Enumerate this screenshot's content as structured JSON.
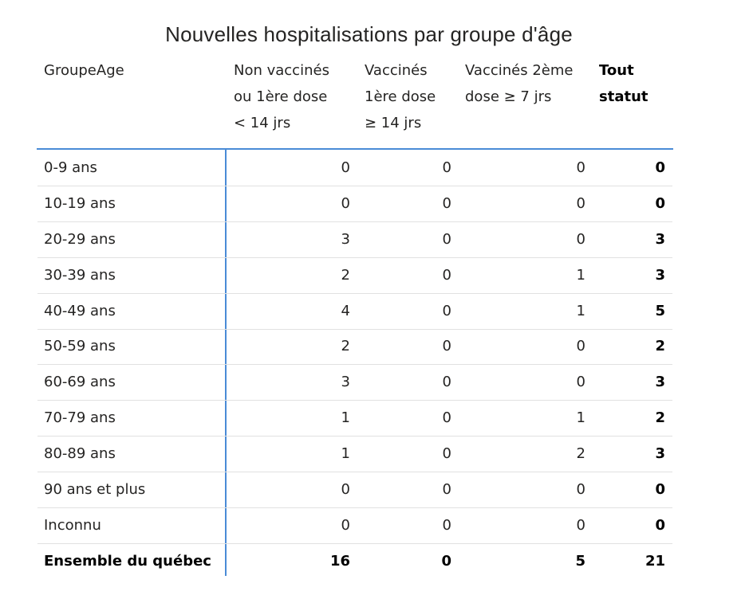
{
  "title": "Nouvelles hospitalisations par groupe d'âge",
  "table": {
    "headers": [
      [
        "GroupeAge"
      ],
      [
        "Non vaccinés",
        "ou 1ère dose",
        "< 14 jrs"
      ],
      [
        "Vaccinés",
        "1ère dose",
        "≥ 14 jrs"
      ],
      [
        "Vaccinés 2ème",
        "dose ≥ 7 jrs"
      ],
      [
        "Tout",
        "statut"
      ]
    ],
    "rows": [
      [
        "0-9 ans",
        0,
        0,
        0,
        0
      ],
      [
        "10-19 ans",
        0,
        0,
        0,
        0
      ],
      [
        "20-29 ans",
        3,
        0,
        0,
        3
      ],
      [
        "30-39 ans",
        2,
        0,
        1,
        3
      ],
      [
        "40-49 ans",
        4,
        0,
        1,
        5
      ],
      [
        "50-59 ans",
        2,
        0,
        0,
        2
      ],
      [
        "60-69 ans",
        3,
        0,
        0,
        3
      ],
      [
        "70-79 ans",
        1,
        0,
        1,
        2
      ],
      [
        "80-89 ans",
        1,
        0,
        2,
        3
      ],
      [
        "90 ans et plus",
        0,
        0,
        0,
        0
      ],
      [
        "Inconnu",
        0,
        0,
        0,
        0
      ]
    ],
    "total": [
      "Ensemble du québec",
      16,
      0,
      5,
      21
    ]
  }
}
